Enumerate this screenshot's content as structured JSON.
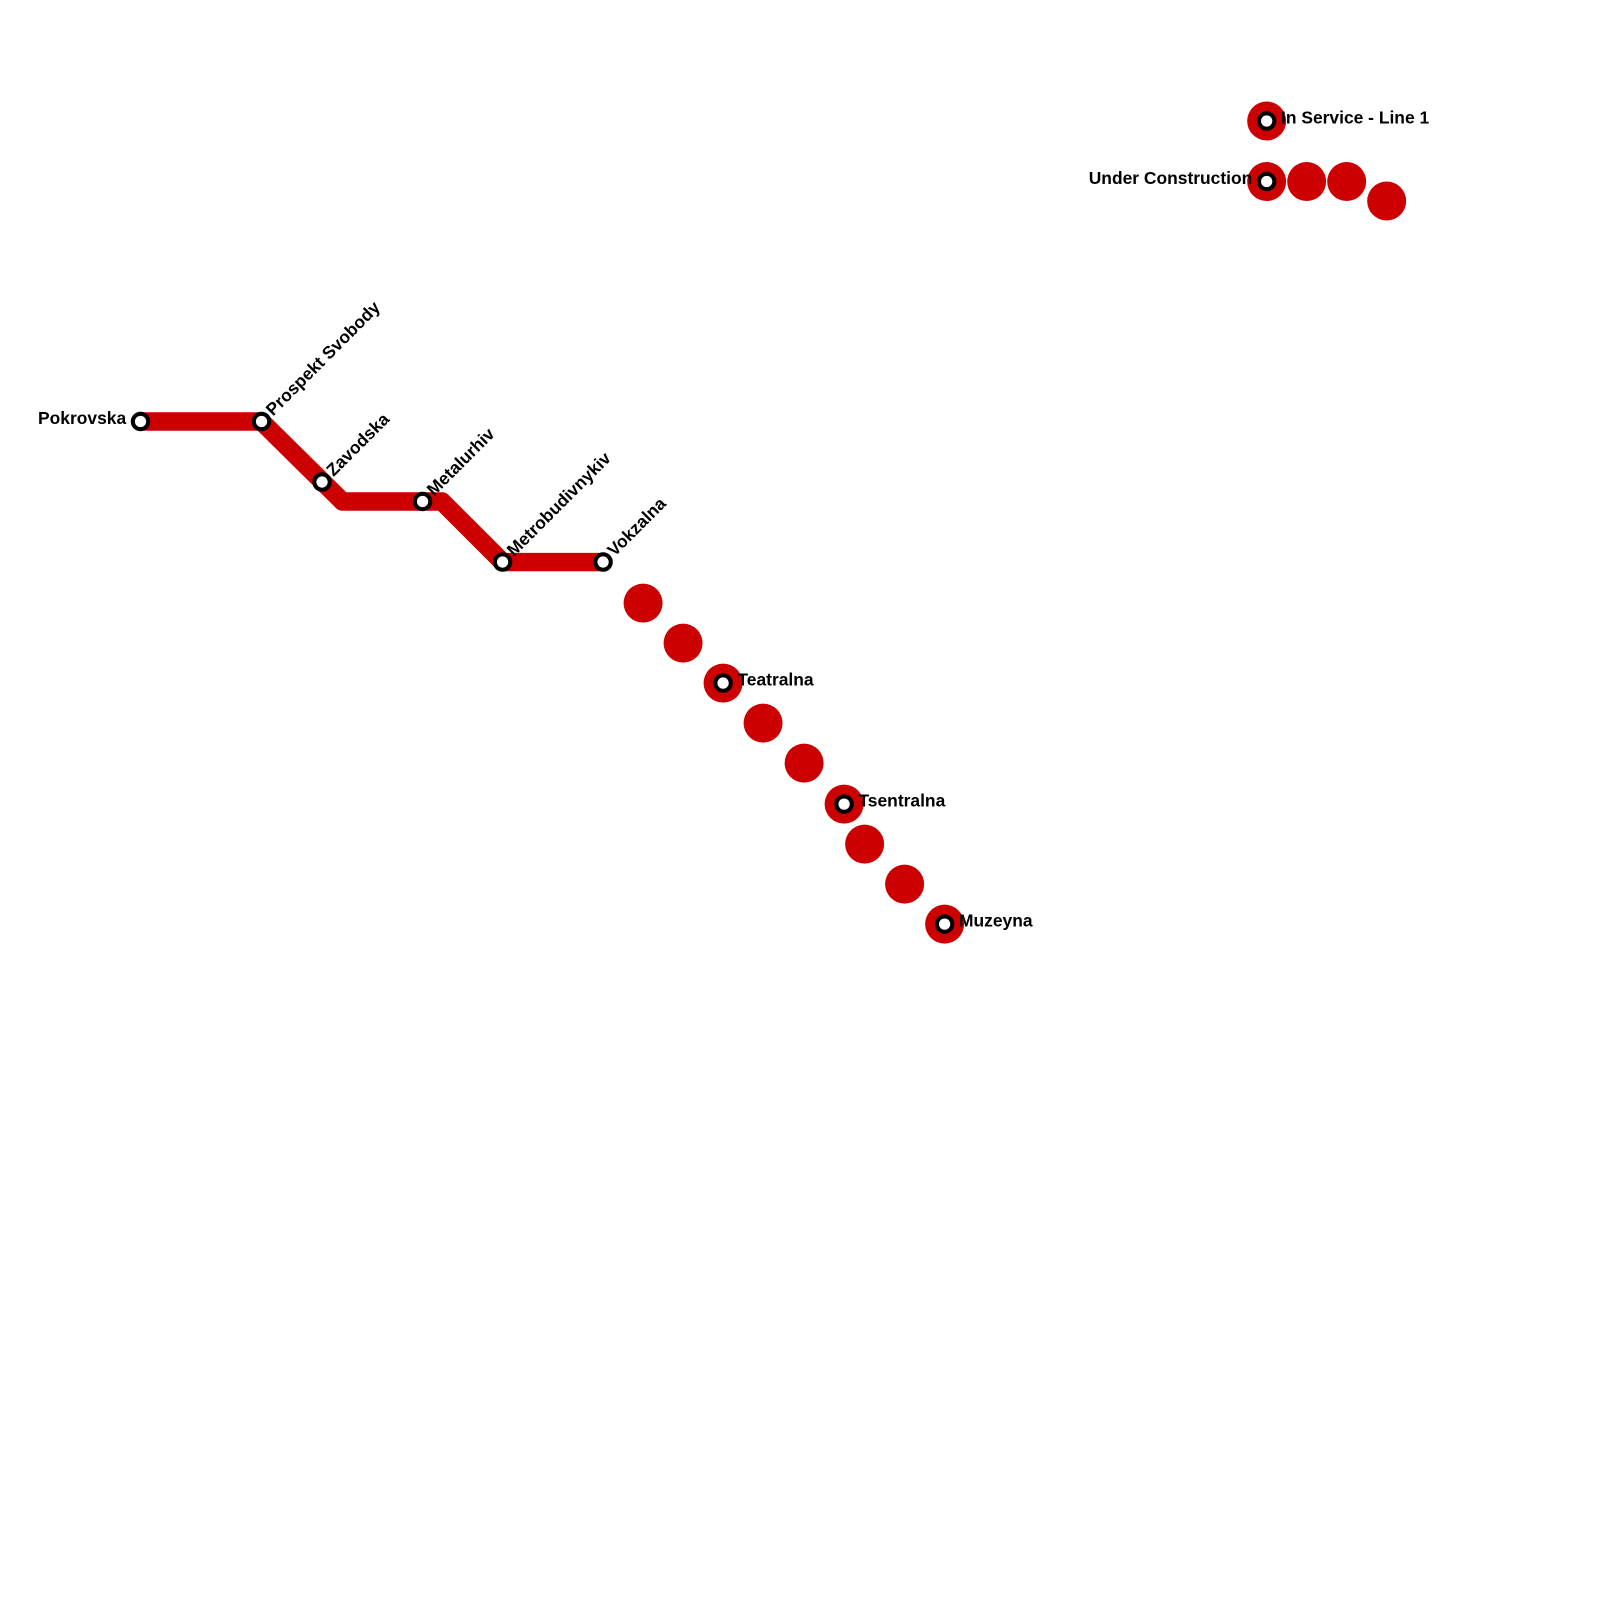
{
  "stations": [
    {
      "label": "Pokrovska"
    },
    {
      "label": "Prospekt Svobody"
    },
    {
      "label": "Zavodska"
    },
    {
      "label": "Metalurhiv"
    },
    {
      "label": "Metrobudivnykiv"
    },
    {
      "label": "Vokzalna"
    },
    {
      "label": "Teatralna"
    },
    {
      "label": "Tsentralna"
    },
    {
      "label": "Muzeyna"
    }
  ],
  "legend": [
    {
      "label": "In Service - Line 1"
    },
    {
      "label": "Under Construction"
    }
  ]
}
